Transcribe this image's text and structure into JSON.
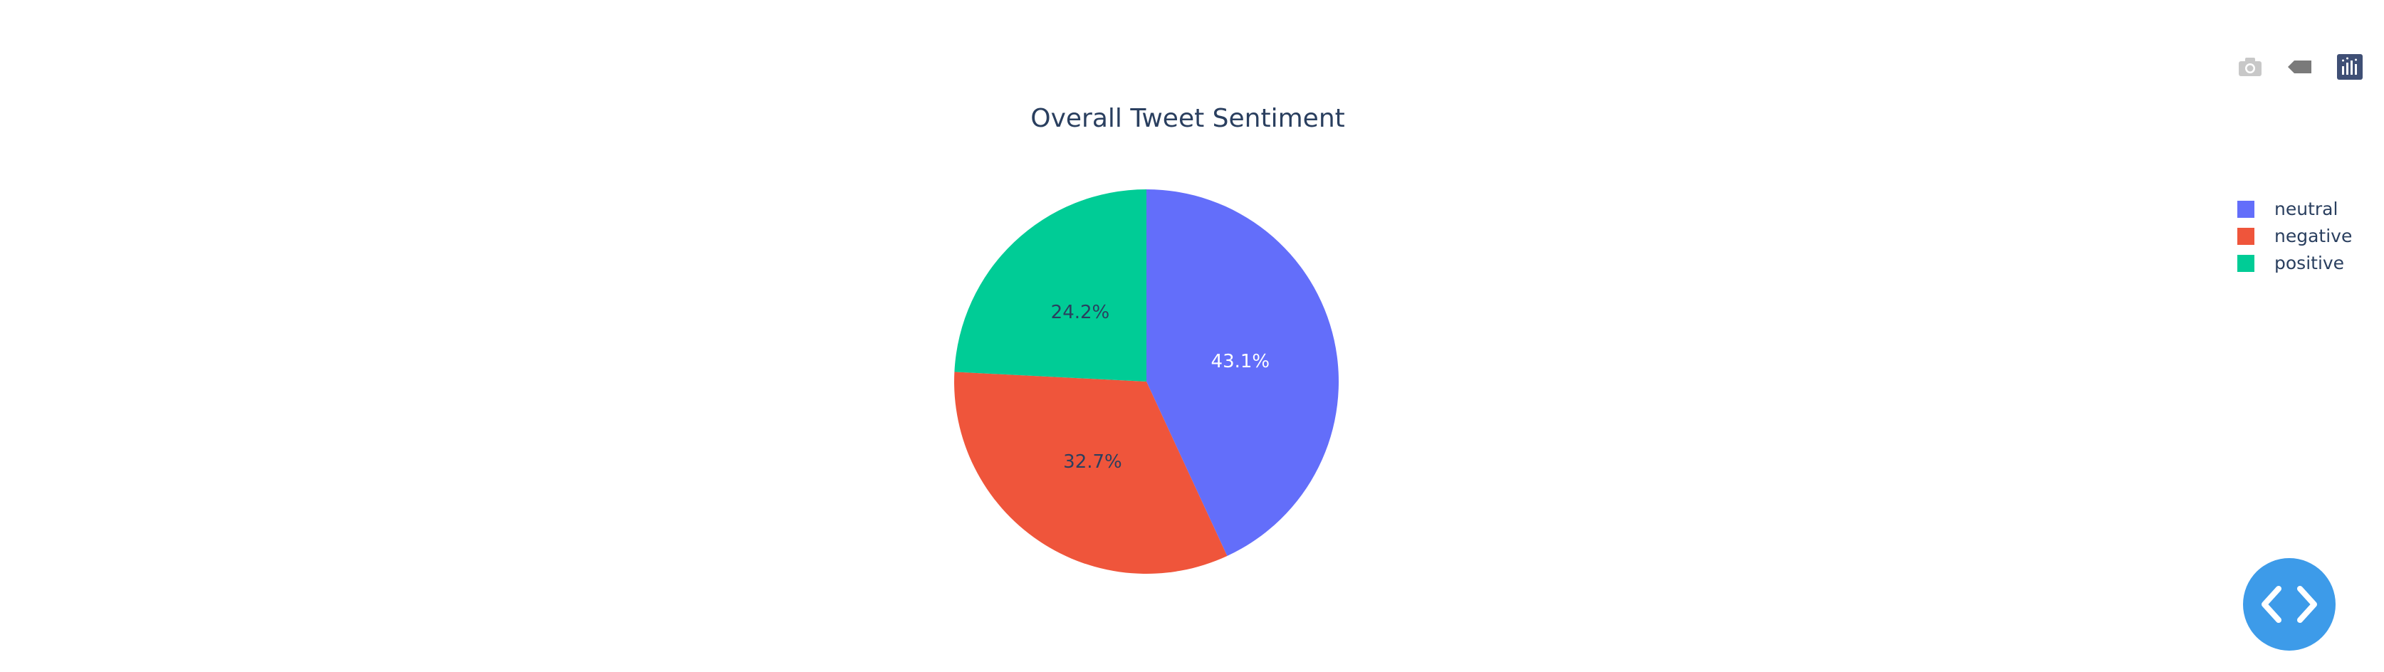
{
  "chart_data": {
    "type": "pie",
    "title": "Overall Tweet Sentiment",
    "categories": [
      "neutral",
      "negative",
      "positive"
    ],
    "values": [
      43.1,
      32.7,
      24.2
    ],
    "labels": [
      "43.1%",
      "32.7%",
      "24.2%"
    ],
    "colors": [
      "#636efa",
      "#ef553b",
      "#00cc96"
    ],
    "label_colors": [
      "#ffffff",
      "#2a3f5f",
      "#2a3f5f"
    ],
    "legend": {
      "position": "top-right",
      "entries": [
        "neutral",
        "negative",
        "positive"
      ]
    }
  },
  "toolbar": {
    "icons": [
      "camera-icon",
      "tag-icon",
      "plotly-logo-icon"
    ]
  },
  "fab": {
    "icon": "code-icon",
    "color": "#3d9be9"
  }
}
